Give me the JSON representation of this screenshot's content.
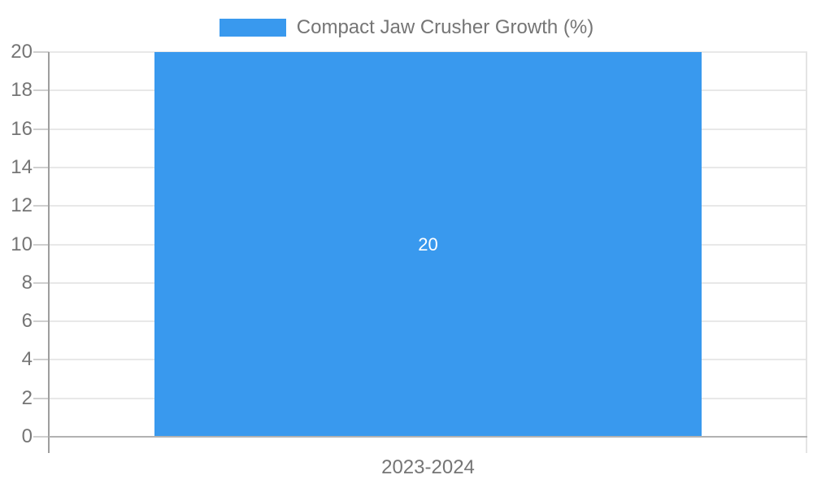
{
  "legend": {
    "label": "Compact Jaw Crusher Growth (%)"
  },
  "chart_data": {
    "type": "bar",
    "title": "Compact Jaw Crusher Growth (%)",
    "categories": [
      "2023-2024"
    ],
    "values": [
      20
    ],
    "value_labels": [
      "20"
    ],
    "ylim": [
      0,
      20
    ],
    "ytick_step": 2,
    "yticks": [
      0,
      2,
      4,
      6,
      8,
      10,
      12,
      14,
      16,
      18,
      20
    ],
    "grid": true,
    "legend_position": "top-center",
    "xlabel": "",
    "ylabel": ""
  },
  "colors": {
    "bar": "#3999ee",
    "value_label": "#ffffff",
    "grid": "#e8e8e8",
    "tick": "#cfcfcf",
    "y_axis": "#9e9e9e",
    "x_axis": "#b2b2b2",
    "right_border": "#e4e4e4",
    "text_gray": "#757575"
  }
}
